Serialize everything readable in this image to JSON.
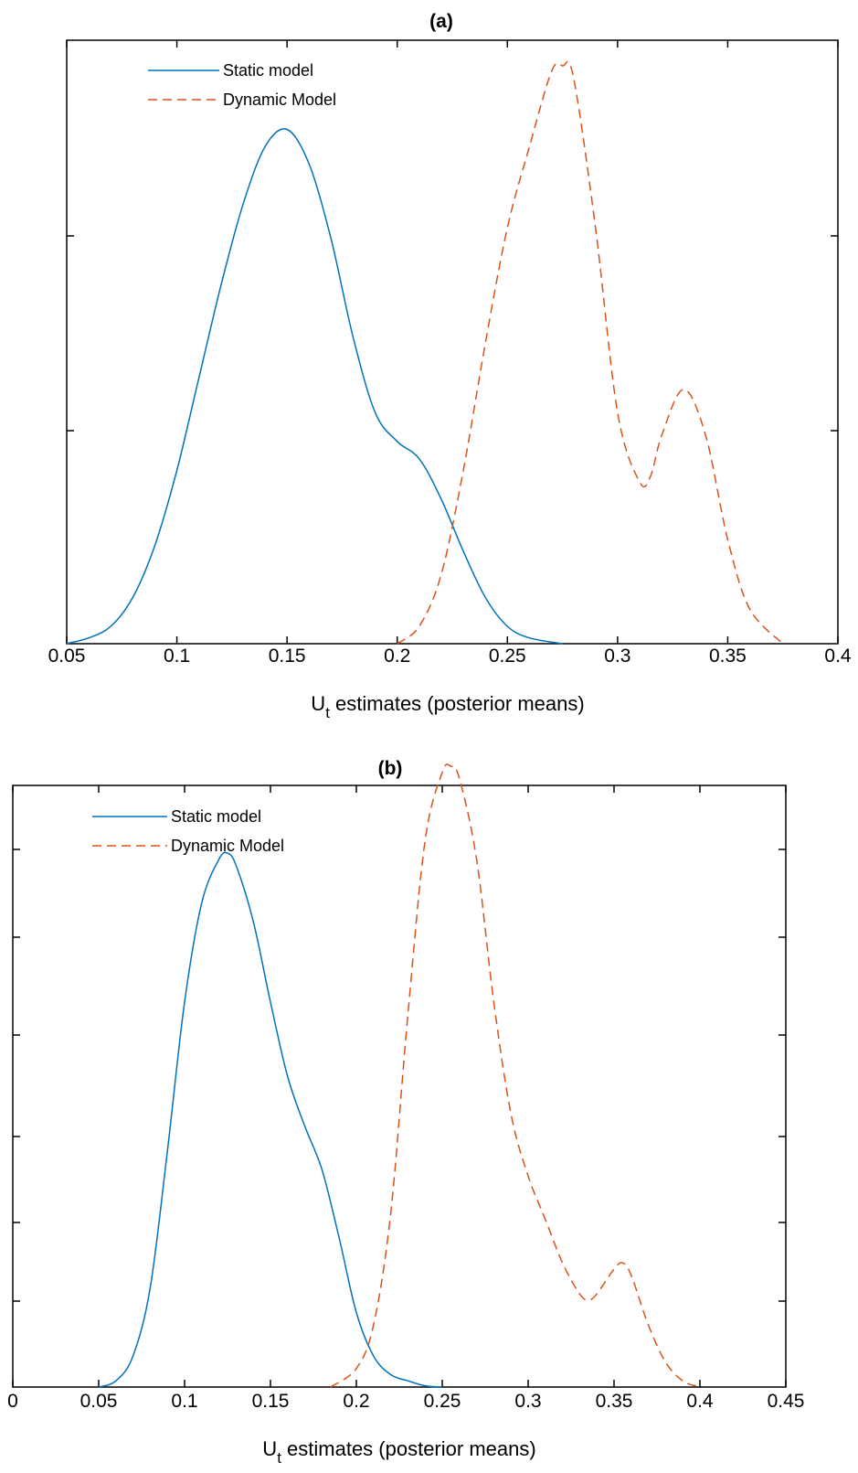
{
  "chart_data": [
    {
      "type": "line",
      "title": "(a)",
      "xlabel": "U",
      "xlabel_sub": "t",
      "xlabel_rest": " estimates (posterior means)",
      "ylabel": "",
      "xlim": [
        0.05,
        0.4
      ],
      "ylim": [
        0,
        1.0
      ],
      "xticks": [
        "0.05",
        "0.1",
        "0.15",
        "0.2",
        "0.25",
        "0.3",
        "0.35",
        "0.4"
      ],
      "legend_position": "top-left",
      "series": [
        {
          "name": "Static model",
          "style": "solid",
          "color": "#0072bd",
          "x": [
            0.05,
            0.06,
            0.07,
            0.08,
            0.09,
            0.1,
            0.11,
            0.12,
            0.13,
            0.14,
            0.15,
            0.16,
            0.17,
            0.18,
            0.19,
            0.2,
            0.21,
            0.22,
            0.23,
            0.24,
            0.25,
            0.26,
            0.275
          ],
          "y": [
            0.0,
            0.01,
            0.03,
            0.08,
            0.17,
            0.3,
            0.46,
            0.62,
            0.76,
            0.86,
            0.89,
            0.83,
            0.7,
            0.53,
            0.4,
            0.35,
            0.32,
            0.25,
            0.16,
            0.08,
            0.03,
            0.01,
            0.0
          ]
        },
        {
          "name": "Dynamic Model",
          "style": "dashed",
          "color": "#d95319",
          "x": [
            0.2,
            0.21,
            0.22,
            0.23,
            0.24,
            0.25,
            0.26,
            0.27,
            0.275,
            0.28,
            0.29,
            0.3,
            0.31,
            0.315,
            0.32,
            0.33,
            0.34,
            0.35,
            0.36,
            0.375
          ],
          "y": [
            0.0,
            0.03,
            0.12,
            0.3,
            0.52,
            0.72,
            0.86,
            0.99,
            1.0,
            0.98,
            0.72,
            0.4,
            0.28,
            0.29,
            0.36,
            0.44,
            0.36,
            0.18,
            0.06,
            0.0
          ]
        }
      ]
    },
    {
      "type": "line",
      "title": "(b)",
      "xlabel": "U",
      "xlabel_sub": "t",
      "xlabel_rest": " estimates (posterior means)",
      "ylabel": "",
      "xlim": [
        0,
        0.45
      ],
      "ylim": [
        0,
        1.0
      ],
      "xticks": [
        "0",
        "0.05",
        "0.1",
        "0.15",
        "0.2",
        "0.25",
        "0.3",
        "0.35",
        "0.4",
        "0.45"
      ],
      "legend_position": "top-left",
      "series": [
        {
          "name": "Static model",
          "style": "solid",
          "color": "#0072bd",
          "x": [
            0.05,
            0.06,
            0.07,
            0.08,
            0.09,
            0.1,
            0.11,
            0.12,
            0.125,
            0.13,
            0.14,
            0.15,
            0.16,
            0.17,
            0.18,
            0.19,
            0.2,
            0.21,
            0.22,
            0.23,
            0.24,
            0.25
          ],
          "y": [
            0.0,
            0.01,
            0.05,
            0.16,
            0.38,
            0.62,
            0.78,
            0.85,
            0.86,
            0.84,
            0.75,
            0.62,
            0.5,
            0.42,
            0.35,
            0.24,
            0.12,
            0.05,
            0.02,
            0.01,
            0.002,
            0.0
          ]
        },
        {
          "name": "Dynamic Model",
          "style": "dashed",
          "color": "#d95319",
          "x": [
            0.185,
            0.2,
            0.21,
            0.22,
            0.23,
            0.24,
            0.25,
            0.255,
            0.26,
            0.27,
            0.28,
            0.29,
            0.3,
            0.31,
            0.32,
            0.33,
            0.335,
            0.34,
            0.35,
            0.355,
            0.36,
            0.37,
            0.38,
            0.39,
            0.4
          ],
          "y": [
            0.0,
            0.03,
            0.1,
            0.28,
            0.6,
            0.88,
            0.99,
            1.0,
            0.98,
            0.85,
            0.62,
            0.44,
            0.34,
            0.27,
            0.2,
            0.15,
            0.14,
            0.15,
            0.19,
            0.2,
            0.18,
            0.1,
            0.04,
            0.01,
            0.0
          ]
        }
      ]
    }
  ]
}
